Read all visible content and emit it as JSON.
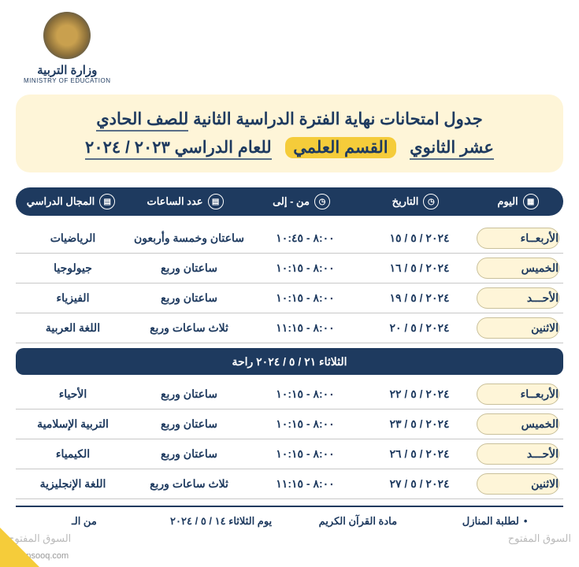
{
  "logo": {
    "text_ar": "وزارة التربية",
    "text_en": "MINISTRY OF EDUCATION"
  },
  "title": {
    "line1_a": "جدول امتحانات نهاية الفترة الدراسية الثانية ",
    "line1_b": "للصف الحادي",
    "line2_a": "عشر الثانوي",
    "line2_highlight": "القسم العلمي",
    "line2_b": "للعام الدراسي ٢٠٢٣ / ٢٠٢٤"
  },
  "headers": {
    "day": "اليوم",
    "date": "التاريخ",
    "time": "من - إلى",
    "hours": "عدد الساعات",
    "subject": "المجال الدراسي"
  },
  "rows1": [
    {
      "day": "الأربعــاء",
      "date": "٢٠٢٤ / ٥ / ١٥",
      "time": "٨:٠٠ - ١٠:٤٥",
      "hours": "ساعتان وخمسة وأربعون",
      "subject": "الرياضيات"
    },
    {
      "day": "الخميس",
      "date": "٢٠٢٤ / ٥ / ١٦",
      "time": "٨:٠٠ - ١٠:١٥",
      "hours": "ساعتان وربع",
      "subject": "جيولوجيا"
    },
    {
      "day": "الأحـــد",
      "date": "٢٠٢٤ / ٥ / ١٩",
      "time": "٨:٠٠ - ١٠:١٥",
      "hours": "ساعتان وربع",
      "subject": "الفيزياء"
    },
    {
      "day": "الاثنين",
      "date": "٢٠٢٤ / ٥ / ٢٠",
      "time": "٨:٠٠ - ١١:١٥",
      "hours": "ثلاث ساعات وربع",
      "subject": "اللغة العربية"
    }
  ],
  "rest": "الثلاثاء ٢١ / ٥ / ٢٠٢٤ راحة",
  "rows2": [
    {
      "day": "الأربعــاء",
      "date": "٢٠٢٤ / ٥ / ٢٢",
      "time": "٨:٠٠ - ١٠:١٥",
      "hours": "ساعتان وربع",
      "subject": "الأحياء"
    },
    {
      "day": "الخميس",
      "date": "٢٠٢٤ / ٥ / ٢٣",
      "time": "٨:٠٠ - ١٠:١٥",
      "hours": "ساعتان وربع",
      "subject": "التربية الإسلامية"
    },
    {
      "day": "الأحـــد",
      "date": "٢٠٢٤ / ٥ / ٢٦",
      "time": "٨:٠٠ - ١٠:١٥",
      "hours": "ساعتان وربع",
      "subject": "الكيمياء"
    },
    {
      "day": "الاثنين",
      "date": "٢٠٢٤ / ٥ / ٢٧",
      "time": "٨:٠٠ - ١١:١٥",
      "hours": "ثلاث ساعات وربع",
      "subject": "اللغة الإنجليزية"
    }
  ],
  "footer": {
    "c1": "لطلبة المنازل",
    "c2": "مادة القرآن الكريم",
    "c3": "يوم الثلاثاء ١٤ / ٥ / ٢٠٢٤",
    "c4": "من الـ"
  },
  "watermark": {
    "site": "opensooq.com",
    "stamp_l": "السوق المفتوح",
    "stamp_r": "السوق المفتوح"
  },
  "colors": {
    "primary": "#1e3a5f",
    "accent": "#f5cc3a",
    "light": "#fef5d8",
    "border": "#c8c8c8"
  }
}
